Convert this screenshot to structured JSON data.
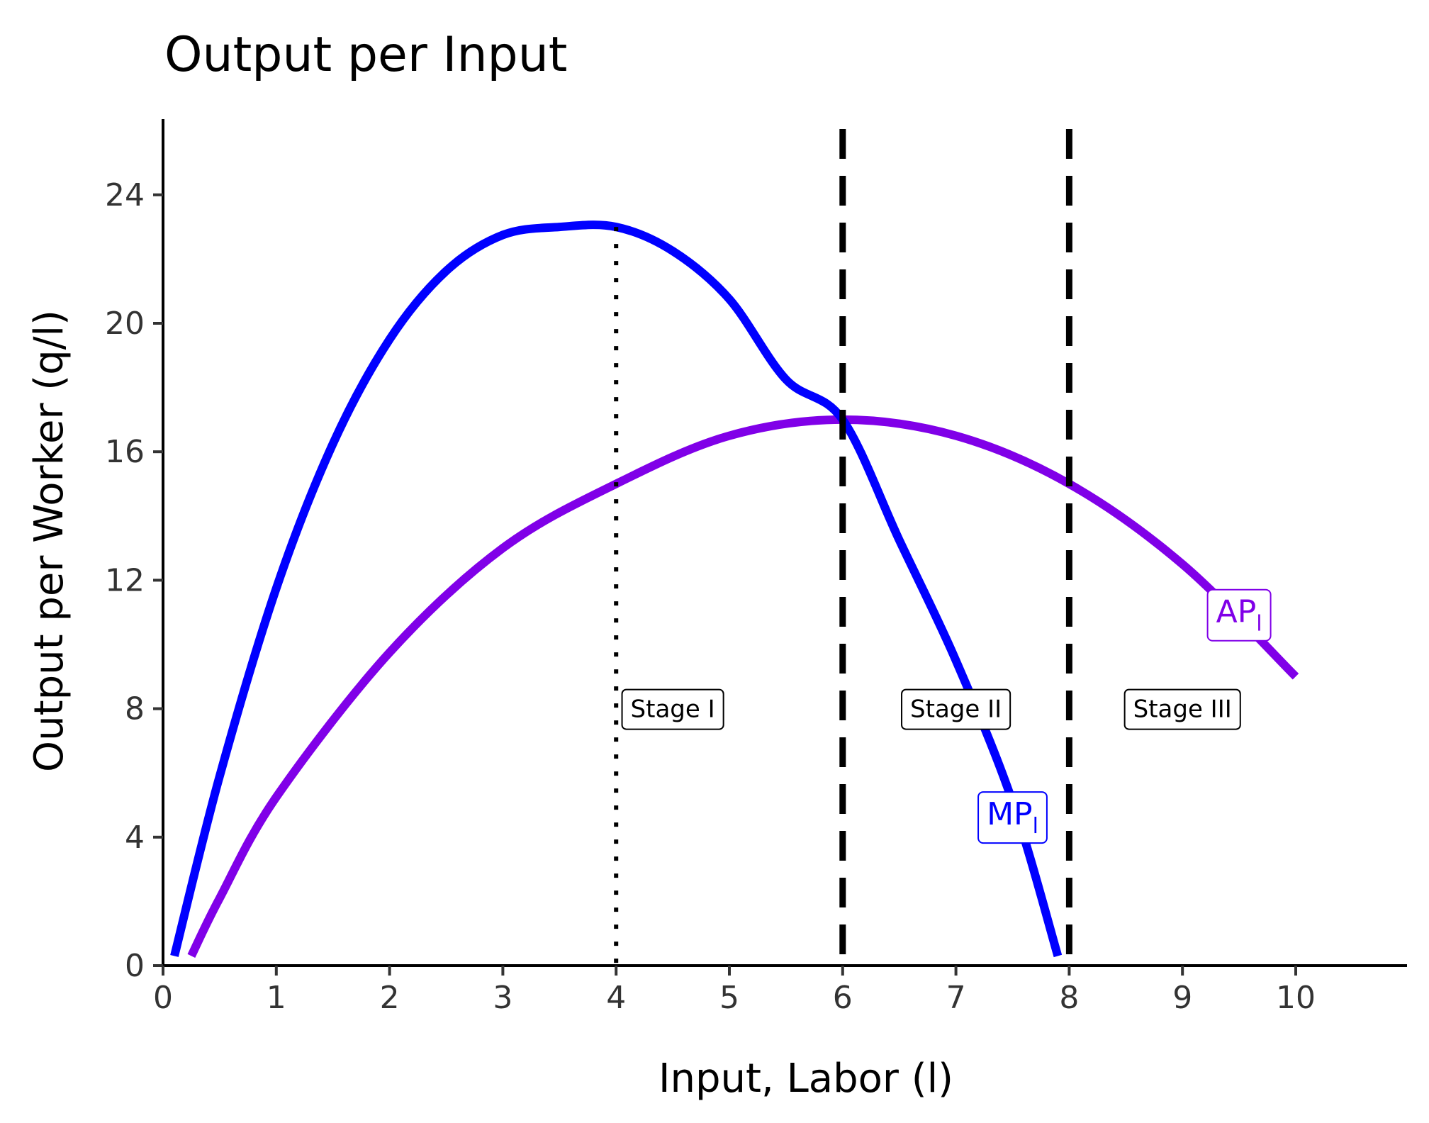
{
  "chart_data": {
    "type": "line",
    "title": "Output per Input",
    "xlabel": "Input, Labor (l)",
    "ylabel": "Output per Worker (q/l)",
    "xlim": [
      0,
      11
    ],
    "ylim": [
      0,
      26
    ],
    "xticks": [
      0,
      1,
      2,
      3,
      4,
      5,
      6,
      7,
      8,
      9,
      10
    ],
    "yticks": [
      0,
      4,
      8,
      12,
      16,
      20,
      24
    ],
    "grid": false,
    "series": [
      {
        "name": "MP",
        "subscript": "l",
        "color": "#0000FF",
        "x": [
          0.1,
          0.5,
          1,
          1.5,
          2,
          2.5,
          3,
          3.5,
          4,
          4.5,
          5,
          5.5,
          6,
          6.5,
          7,
          7.5,
          7.9
        ],
        "y": [
          0.3,
          5.9,
          11.75,
          16.25,
          19.5,
          21.63,
          22.75,
          23,
          23,
          22.25,
          20.75,
          18.25,
          17,
          13.25,
          9.5,
          5.1,
          0.3
        ]
      },
      {
        "name": "AP",
        "subscript": "l",
        "color": "#8000E8",
        "x": [
          0.25,
          0.5,
          1,
          2,
          3,
          4,
          5,
          6,
          7,
          8,
          9,
          10
        ],
        "y": [
          0.3,
          2.1,
          5.25,
          9.75,
          13.0,
          15.0,
          16.5,
          17.0,
          16.5,
          15.0,
          12.5,
          9.0
        ]
      }
    ],
    "reference_lines": [
      {
        "x": 4,
        "style": "dotted"
      },
      {
        "x": 6,
        "style": "dashed"
      },
      {
        "x": 8,
        "style": "dashed"
      }
    ],
    "annotations": [
      {
        "text": "Stage I",
        "x": 4.5,
        "y": 8
      },
      {
        "text": "Stage II",
        "x": 7.0,
        "y": 8
      },
      {
        "text": "Stage III",
        "x": 9.0,
        "y": 8
      }
    ],
    "series_labels": [
      {
        "series": "MP",
        "x": 7.5,
        "y": 4.7
      },
      {
        "series": "AP",
        "x": 9.5,
        "y": 11
      }
    ]
  }
}
